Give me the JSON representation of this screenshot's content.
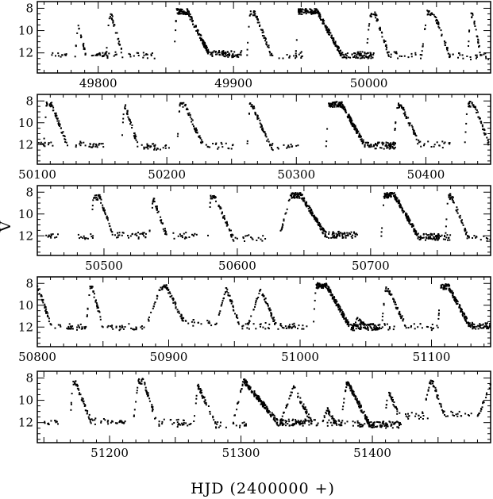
{
  "chart_data": {
    "type": "scatter",
    "xlabel": "HJD (2400000 +)",
    "ylabel": "V",
    "y_inverted": true,
    "ylim": [
      13.8,
      7.4
    ],
    "y_ticks": [
      8,
      10,
      12
    ],
    "marker_color": "#000000",
    "panels": [
      {
        "xlim": [
          49755,
          50090
        ],
        "x_ticks": [
          49800,
          49900,
          50000
        ],
        "x_tick_labels": [
          "49800",
          "49900",
          "50000"
        ],
        "minima": [
          [
            49765,
            12.2
          ],
          [
            49795,
            12.2
          ]
        ],
        "events": [
          {
            "start": 49783,
            "rise": 2,
            "flat": 0,
            "fall": 6,
            "peak": 9.5,
            "base": 12.2
          },
          {
            "start": 49806,
            "rise": 2,
            "flat": 2,
            "fall": 8,
            "peak": 8.7,
            "base": 12.2
          },
          {
            "start": 49856,
            "rise": 2,
            "flat": 8,
            "fall": 16,
            "peak": 8.3,
            "base": 12.1
          },
          {
            "start": 49910,
            "rise": 2,
            "flat": 4,
            "fall": 12,
            "peak": 8.5,
            "base": 12.2
          },
          {
            "start": 49946,
            "rise": 2,
            "flat": 14,
            "fall": 18,
            "peak": 8.3,
            "base": 12.2
          },
          {
            "start": 49998,
            "rise": 3,
            "flat": 4,
            "fall": 10,
            "peak": 8.6,
            "base": 12.2
          },
          {
            "start": 50039,
            "rise": 4,
            "flat": 5,
            "fall": 12,
            "peak": 8.4,
            "base": 12.3
          },
          {
            "start": 50073,
            "rise": 2,
            "flat": 2,
            "fall": 6,
            "peak": 8.6,
            "base": 12.3
          }
        ]
      },
      {
        "xlim": [
          50100,
          50450
        ],
        "x_ticks": [
          50100,
          50200,
          50300,
          50400
        ],
        "x_tick_labels": [
          "50100",
          "50200",
          "50300",
          "50400"
        ],
        "minima": [
          [
            50100,
            12.0
          ],
          [
            50140,
            12.1
          ],
          [
            50180,
            12.2
          ]
        ],
        "events": [
          {
            "start": 50105,
            "rise": 2,
            "flat": 4,
            "fall": 12,
            "peak": 8.3,
            "base": 12.0
          },
          {
            "start": 50165,
            "rise": 2,
            "flat": 1,
            "fall": 10,
            "peak": 8.5,
            "base": 12.2
          },
          {
            "start": 50208,
            "rise": 2,
            "flat": 4,
            "fall": 14,
            "peak": 8.4,
            "base": 12.1
          },
          {
            "start": 50262,
            "rise": 2,
            "flat": 2,
            "fall": 14,
            "peak": 8.4,
            "base": 12.2
          },
          {
            "start": 50323,
            "rise": 2,
            "flat": 10,
            "fall": 18,
            "peak": 8.3,
            "base": 12.1
          },
          {
            "start": 50375,
            "rise": 3,
            "flat": 3,
            "fall": 14,
            "peak": 8.4,
            "base": 12.0
          },
          {
            "start": 50430,
            "rise": 2,
            "flat": 5,
            "fall": 12,
            "peak": 8.3,
            "base": 12.0
          }
        ]
      },
      {
        "xlim": [
          50450,
          50790
        ],
        "x_ticks": [
          50500,
          50600,
          50700
        ],
        "x_tick_labels": [
          "50500",
          "50600",
          "50700"
        ],
        "minima": [
          [
            50455,
            12.0
          ],
          [
            50480,
            12.1
          ],
          [
            50520,
            12.0
          ]
        ],
        "events": [
          {
            "start": 50490,
            "rise": 2,
            "flat": 5,
            "fall": 10,
            "peak": 8.5,
            "base": 12.0
          },
          {
            "start": 50534,
            "rise": 3,
            "flat": 0,
            "fall": 10,
            "peak": 8.5,
            "base": 12.0
          },
          {
            "start": 50578,
            "rise": 2,
            "flat": 3,
            "fall": 14,
            "peak": 8.4,
            "base": 12.2
          },
          {
            "start": 50632,
            "rise": 8,
            "flat": 8,
            "fall": 18,
            "peak": 8.3,
            "base": 11.9
          },
          {
            "start": 50708,
            "rise": 2,
            "flat": 8,
            "fall": 18,
            "peak": 8.3,
            "base": 12.1
          },
          {
            "start": 50756,
            "rise": 2,
            "flat": 3,
            "fall": 12,
            "peak": 8.4,
            "base": 12.2
          }
        ]
      },
      {
        "xlim": [
          50800,
          51145
        ],
        "x_ticks": [
          50800,
          50900,
          51000,
          51100
        ],
        "x_tick_labels": [
          "50800",
          "50900",
          "51000",
          "51100"
        ],
        "minima": [
          [
            50825,
            12.0
          ],
          [
            50870,
            12.1
          ],
          [
            50985,
            12.0
          ]
        ],
        "events": [
          {
            "start": 50795,
            "rise": 2,
            "flat": 4,
            "fall": 10,
            "peak": 8.5,
            "base": 12.0
          },
          {
            "start": 50837,
            "rise": 3,
            "flat": 2,
            "fall": 8,
            "peak": 8.5,
            "base": 12.0
          },
          {
            "start": 50884,
            "rise": 10,
            "flat": 4,
            "fall": 14,
            "peak": 8.3,
            "base": 11.6
          },
          {
            "start": 50936,
            "rise": 8,
            "flat": 0,
            "fall": 10,
            "peak": 8.4,
            "base": 11.9
          },
          {
            "start": 50960,
            "rise": 10,
            "flat": 0,
            "fall": 12,
            "peak": 8.5,
            "base": 11.9
          },
          {
            "start": 51010,
            "rise": 2,
            "flat": 8,
            "fall": 18,
            "peak": 8.2,
            "base": 12.0
          },
          {
            "start": 51040,
            "rise": 4,
            "flat": 0,
            "fall": 6,
            "peak": 11.2,
            "base": 12.0
          },
          {
            "start": 51062,
            "rise": 3,
            "flat": 2,
            "fall": 14,
            "peak": 8.5,
            "base": 12.0
          },
          {
            "start": 51105,
            "rise": 2,
            "flat": 6,
            "fall": 16,
            "peak": 8.3,
            "base": 11.9
          }
        ]
      },
      {
        "xlim": [
          51145,
          51490
        ],
        "x_ticks": [
          51200,
          51300,
          51400
        ],
        "x_tick_labels": [
          "51200",
          "51300",
          "51400"
        ],
        "minima": [
          [
            51150,
            12.0
          ],
          [
            51200,
            12.0
          ],
          [
            51250,
            12.2
          ],
          [
            51390,
            12.2
          ]
        ],
        "events": [
          {
            "start": 51170,
            "rise": 2,
            "flat": 2,
            "fall": 12,
            "peak": 8.4,
            "base": 11.9
          },
          {
            "start": 51218,
            "rise": 4,
            "flat": 4,
            "fall": 10,
            "peak": 8.3,
            "base": 12.0
          },
          {
            "start": 51264,
            "rise": 3,
            "flat": 0,
            "fall": 14,
            "peak": 8.6,
            "base": 12.2
          },
          {
            "start": 51294,
            "rise": 8,
            "flat": 0,
            "fall": 26,
            "peak": 8.2,
            "base": 12.0
          },
          {
            "start": 51330,
            "rise": 10,
            "flat": 0,
            "fall": 14,
            "peak": 8.8,
            "base": 12.0
          },
          {
            "start": 51362,
            "rise": 4,
            "flat": 0,
            "fall": 6,
            "peak": 10.8,
            "base": 12.0
          },
          {
            "start": 51376,
            "rise": 4,
            "flat": 2,
            "fall": 16,
            "peak": 8.6,
            "base": 12.2
          },
          {
            "start": 51410,
            "rise": 2,
            "flat": 0,
            "fall": 8,
            "peak": 9.0,
            "base": 11.4
          },
          {
            "start": 51438,
            "rise": 6,
            "flat": 2,
            "fall": 8,
            "peak": 8.4,
            "base": 11.2
          },
          {
            "start": 51480,
            "rise": 10,
            "flat": 0,
            "fall": 0,
            "peak": 8.6,
            "base": 11.6
          }
        ]
      }
    ]
  }
}
